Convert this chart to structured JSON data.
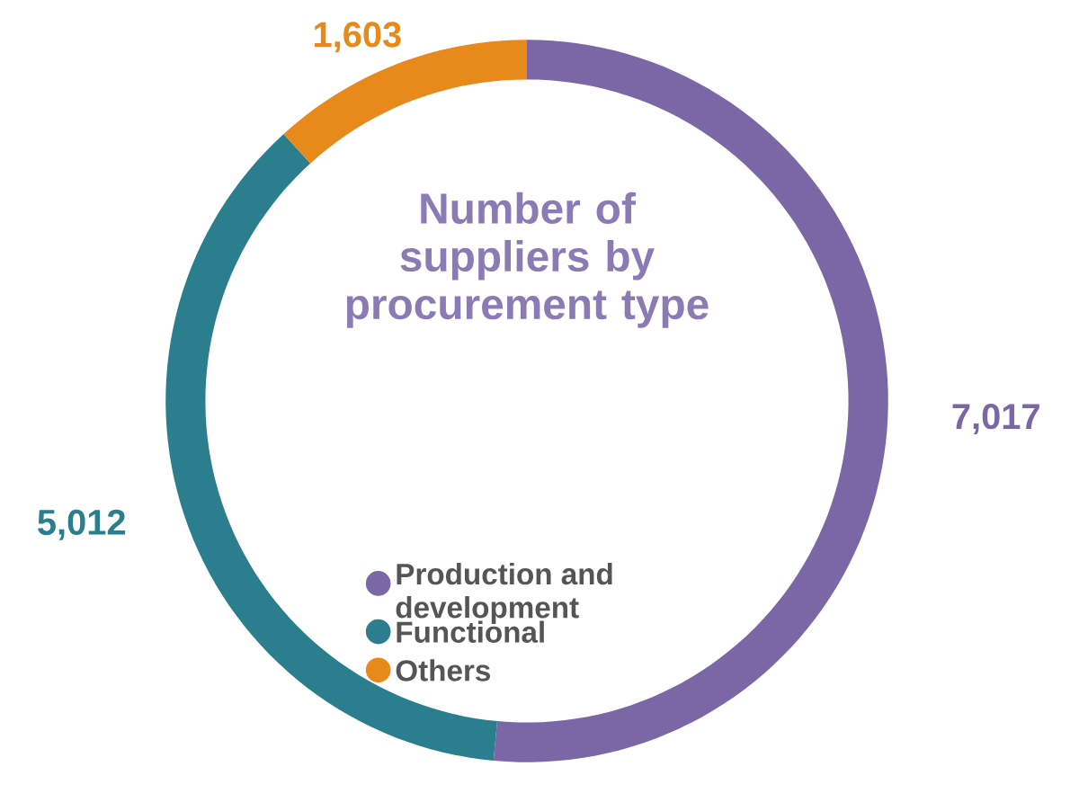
{
  "chart_data": {
    "type": "donut",
    "title": "Number of suppliers by procurement type",
    "categories": [
      "Production and development",
      "Functional",
      "Others"
    ],
    "values": [
      7017,
      5012,
      1603
    ],
    "value_labels": [
      "7,017",
      "5,012",
      "1,603"
    ],
    "colors": [
      "#7b67a5",
      "#2b7e8e",
      "#e8891c"
    ],
    "legend": "center"
  }
}
